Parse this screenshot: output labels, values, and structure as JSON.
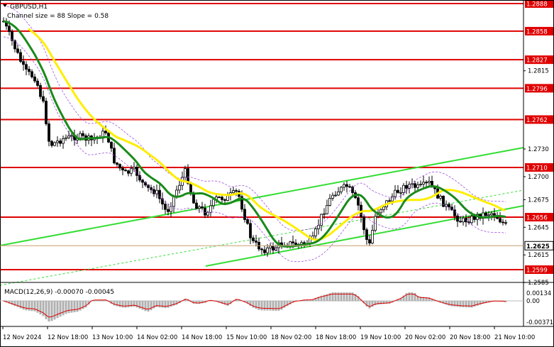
{
  "window": {
    "title": "GBPUSD,H1",
    "indicator_caption": "Channel size = 88 Slope = 0.58"
  },
  "macd": {
    "label": "MACD(12,26,9) -0.00070 -0.00045",
    "axis_labels": [
      "0.00134",
      "0.00",
      "-0.00371"
    ]
  },
  "price_axis": {
    "ticks": [
      "1.2815",
      "1.2730",
      "1.2700",
      "1.2675",
      "1.2645",
      "1.2615",
      "1.2585"
    ],
    "current_price": "1.2625"
  },
  "levels": [
    {
      "label": "1.2888",
      "value": 1.2888
    },
    {
      "label": "1.2858",
      "value": 1.2858
    },
    {
      "label": "1.2827",
      "value": 1.2827
    },
    {
      "label": "1.2796",
      "value": 1.2796
    },
    {
      "label": "1.2762",
      "value": 1.2762
    },
    {
      "label": "1.2710",
      "value": 1.271
    },
    {
      "label": "1.2656",
      "value": 1.2656
    },
    {
      "label": "1.2599",
      "value": 1.2599
    }
  ],
  "time_axis": [
    "12 Nov 2024",
    "12 Nov 18:00",
    "13 Nov 10:00",
    "14 Nov 02:00",
    "14 Nov 18:00",
    "15 Nov 10:00",
    "18 Nov 02:00",
    "18 Nov 18:00",
    "19 Nov 10:00",
    "20 Nov 02:00",
    "20 Nov 18:00",
    "21 Nov 10:00"
  ],
  "colors": {
    "level": "#e00000",
    "channel": "#33dd33",
    "ma_fast": "#1a8a1a",
    "ma_slow": "#ffee00",
    "candle": "#000000",
    "bollinger": "#a050e0"
  }
}
